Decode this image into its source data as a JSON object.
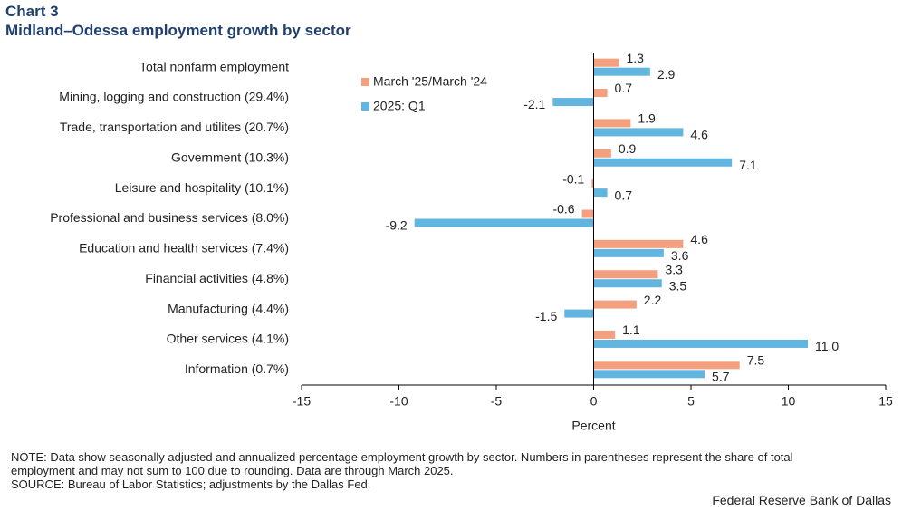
{
  "header": {
    "chart_number": "Chart 3",
    "title": "Midland–Odessa employment growth by sector"
  },
  "chart_data": {
    "type": "bar",
    "orientation": "horizontal",
    "categories": [
      "Total nonfarm employment",
      "Mining, logging and construction (29.4%)",
      "Trade, transportation and utilites (20.7%)",
      "Government (10.3%)",
      "Leisure and hospitality (10.1%)",
      "Professional and business services (8.0%)",
      "Education and health services (7.4%)",
      "Financial activities (4.8%)",
      "Manufacturing (4.4%)",
      "Other services (4.1%)",
      "Information (0.7%)"
    ],
    "series": [
      {
        "name": "March '25/March '24",
        "color": "#f4a07f",
        "values": [
          1.3,
          0.7,
          1.9,
          0.9,
          -0.1,
          -0.6,
          4.6,
          3.3,
          2.2,
          1.1,
          7.5
        ],
        "labels": [
          "1.3",
          "0.7",
          "1.9",
          "0.9",
          "-0.1",
          "-0.6",
          "4.6",
          "3.3",
          "2.2",
          "1.1",
          "7.5"
        ]
      },
      {
        "name": "2025: Q1",
        "color": "#62b5de",
        "values": [
          2.9,
          -2.1,
          4.6,
          7.1,
          0.7,
          -9.2,
          3.6,
          3.5,
          -1.5,
          11.0,
          5.7
        ],
        "labels": [
          "2.9",
          "-2.1",
          "4.6",
          "7.1",
          "0.7",
          "-9.2",
          "3.6",
          "3.5",
          "-1.5",
          "11.0",
          "5.7"
        ]
      }
    ],
    "xlabel": "Percent",
    "xlim": [
      -15,
      15
    ],
    "xticks": [
      -15,
      -10,
      -5,
      0,
      5,
      10,
      15
    ],
    "xtick_labels": [
      "-15",
      "-10",
      "-5",
      "0",
      "5",
      "10",
      "15"
    ],
    "grid": false,
    "legend_position": "top-left"
  },
  "footer": {
    "note_line1": "NOTE: Data show seasonally adjusted and annualized percentage employment growth by sector. Numbers in parentheses represent the share of total",
    "note_line2": "employment and may not sum to 100 due to rounding.  Data are through March 2025.",
    "source": "SOURCE: Bureau of Labor Statistics; adjustments by the Dallas Fed.",
    "credit": "Federal Reserve Bank of Dallas"
  }
}
